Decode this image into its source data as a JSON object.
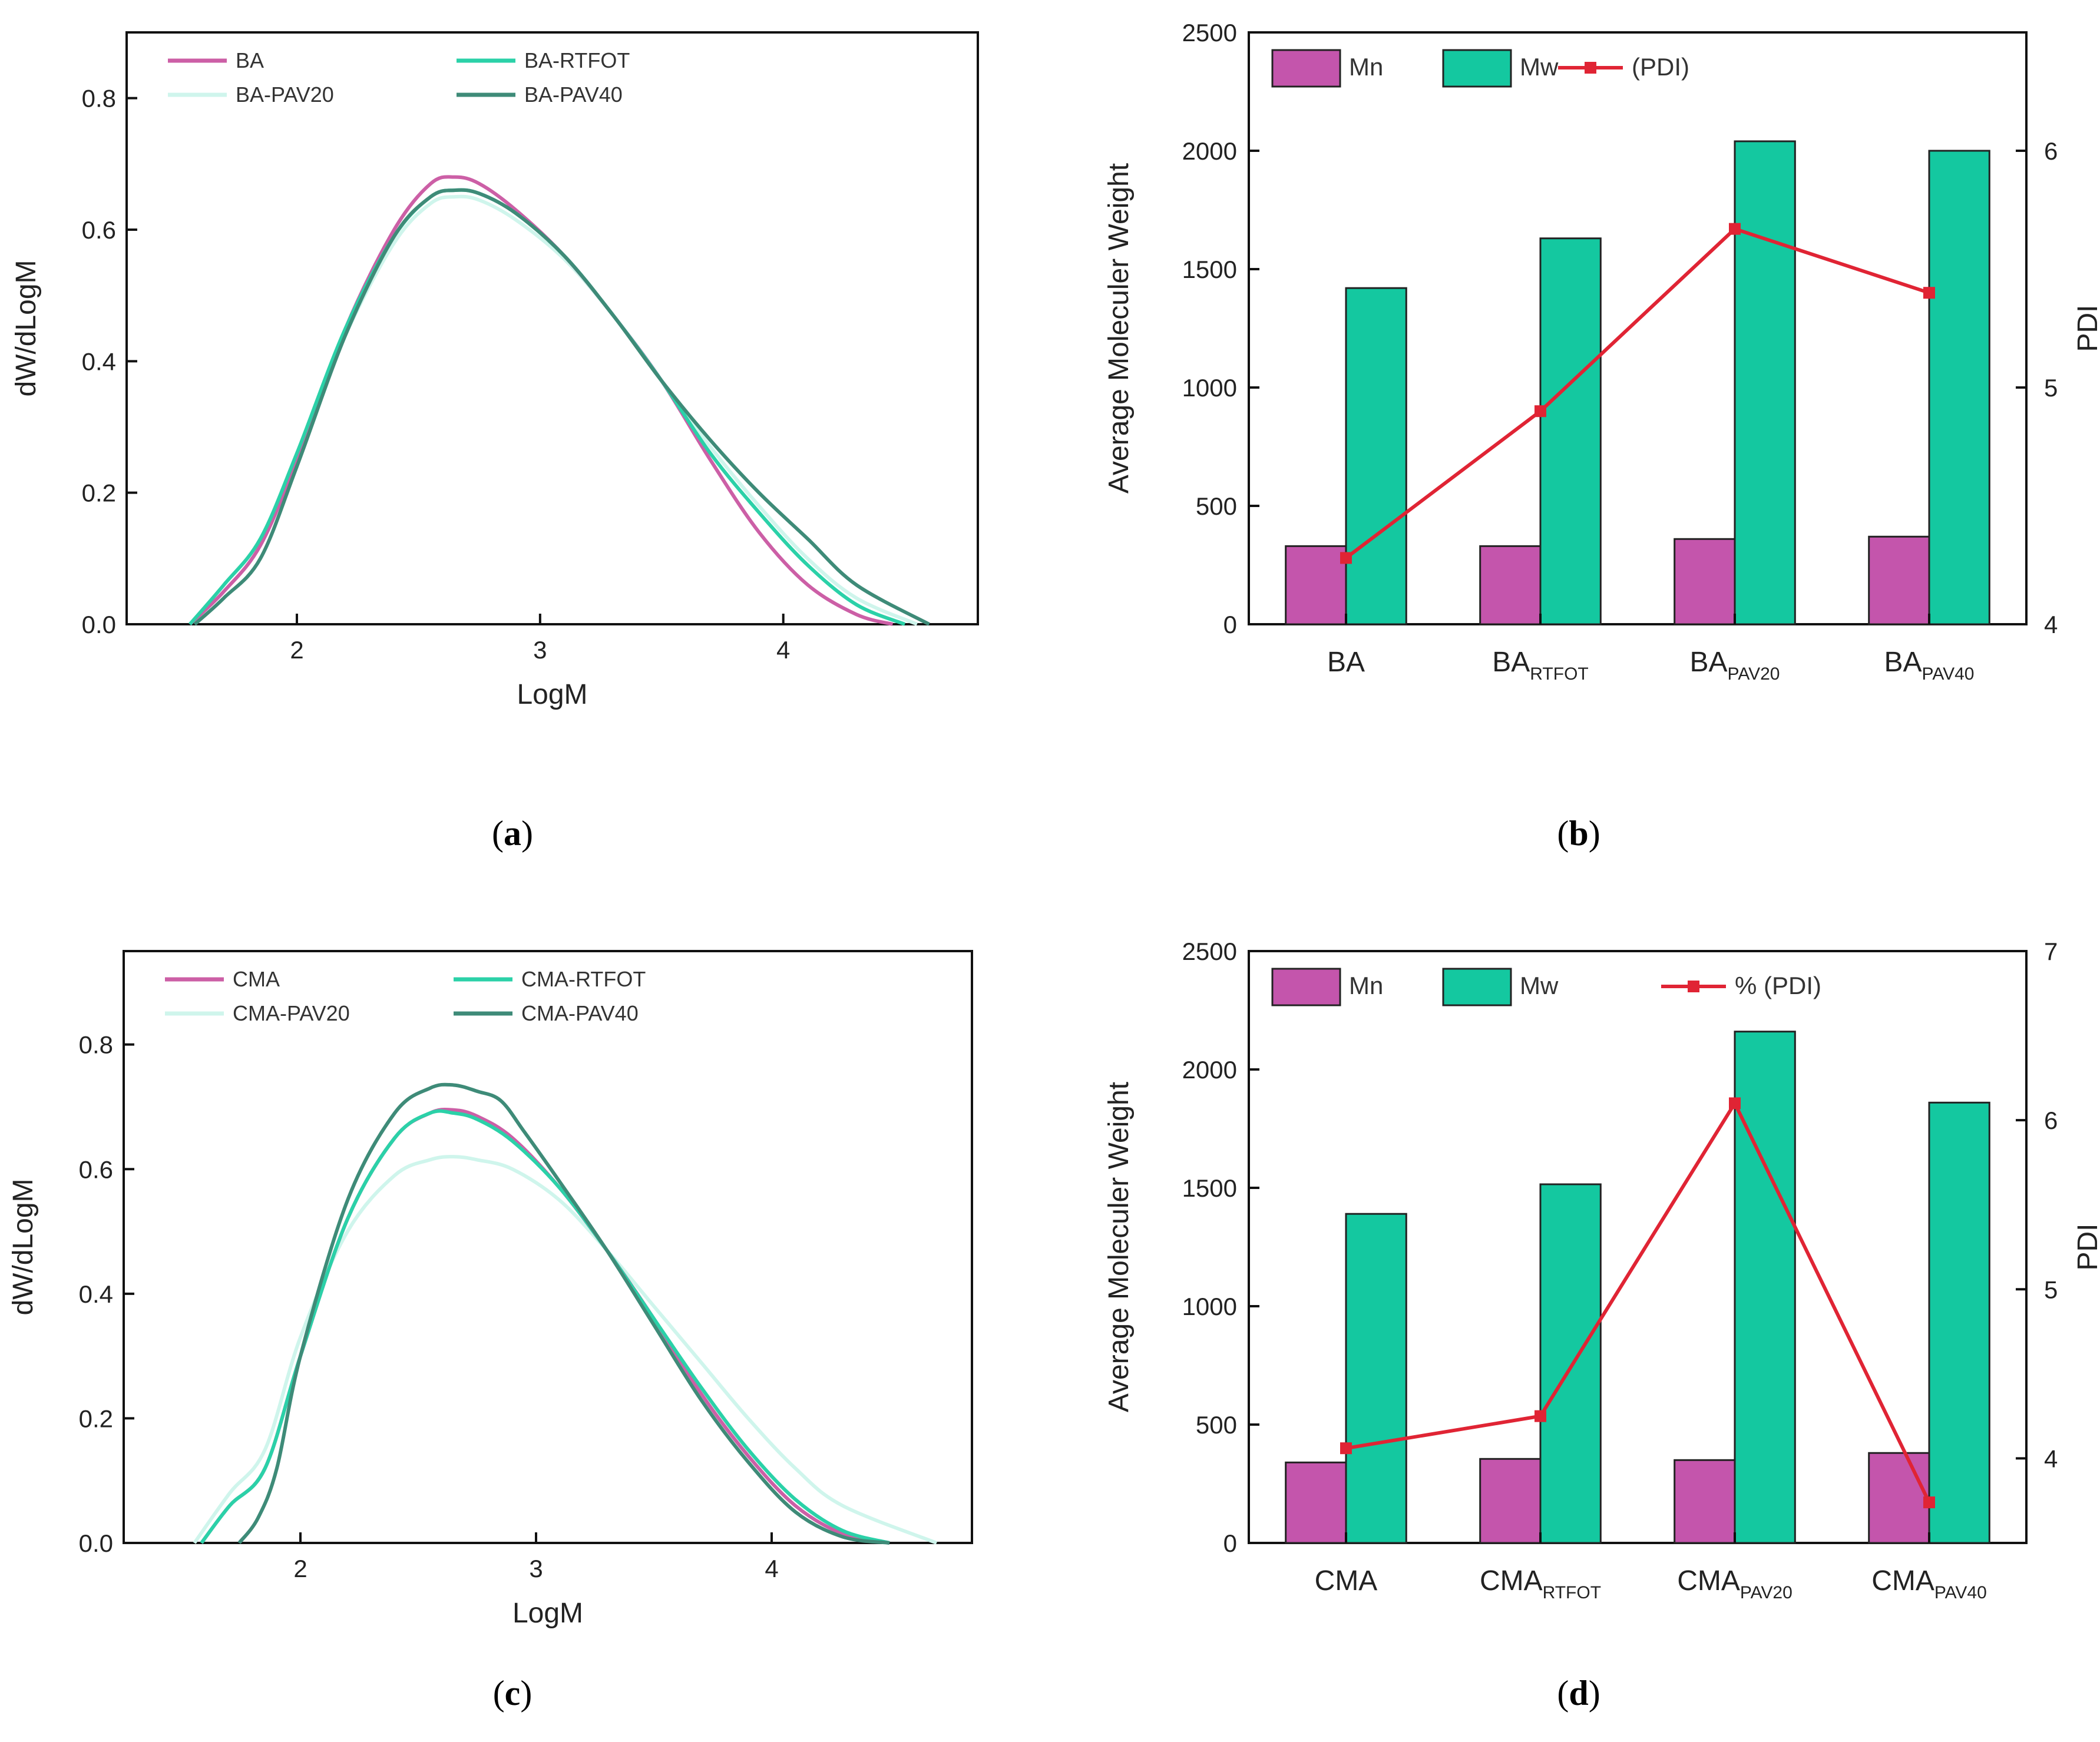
{
  "chart_data": [
    {
      "panel": "a",
      "type": "line",
      "caption_letter": "a",
      "xlabel": "LogM",
      "ylabel": "dW/dLogM",
      "xlim": [
        1.3,
        4.8
      ],
      "ylim": [
        0,
        0.9
      ],
      "xticks": [
        "2",
        "3",
        "4"
      ],
      "yticks": [
        "0.0",
        "0.2",
        "0.4",
        "0.6",
        "0.8"
      ],
      "legend": [
        "BA",
        "BA-RTFOT",
        "BA-PAV20",
        "BA-PAV40"
      ],
      "series": [
        {
          "name": "BA",
          "color": "#cc5fa6",
          "x": [
            1.56,
            1.7,
            1.85,
            2.0,
            2.2,
            2.4,
            2.55,
            2.65,
            2.75,
            2.9,
            3.1,
            3.3,
            3.5,
            3.7,
            3.9,
            4.1,
            4.3,
            4.45
          ],
          "y": [
            0.0,
            0.05,
            0.12,
            0.25,
            0.45,
            0.6,
            0.67,
            0.68,
            0.67,
            0.63,
            0.56,
            0.47,
            0.37,
            0.25,
            0.14,
            0.06,
            0.015,
            0.0
          ]
        },
        {
          "name": "BA-RTFOT",
          "color": "#2bd1a8",
          "x": [
            1.56,
            1.7,
            1.85,
            2.0,
            2.2,
            2.4,
            2.55,
            2.65,
            2.75,
            2.9,
            3.1,
            3.3,
            3.5,
            3.7,
            3.9,
            4.1,
            4.3,
            4.5
          ],
          "y": [
            0.0,
            0.06,
            0.13,
            0.26,
            0.45,
            0.59,
            0.65,
            0.66,
            0.655,
            0.625,
            0.56,
            0.47,
            0.37,
            0.26,
            0.17,
            0.09,
            0.03,
            0.0
          ]
        },
        {
          "name": "BA-PAV20",
          "color": "#cff5ec",
          "x": [
            1.56,
            1.7,
            1.85,
            2.0,
            2.2,
            2.4,
            2.55,
            2.65,
            2.75,
            2.9,
            3.1,
            3.3,
            3.5,
            3.7,
            3.9,
            4.1,
            4.3,
            4.55
          ],
          "y": [
            0.0,
            0.06,
            0.13,
            0.26,
            0.44,
            0.58,
            0.64,
            0.65,
            0.645,
            0.615,
            0.555,
            0.47,
            0.37,
            0.27,
            0.18,
            0.1,
            0.04,
            0.0
          ]
        },
        {
          "name": "BA-PAV40",
          "color": "#3e8b78",
          "x": [
            1.58,
            1.7,
            1.85,
            2.0,
            2.2,
            2.4,
            2.55,
            2.65,
            2.75,
            2.9,
            3.1,
            3.3,
            3.5,
            3.7,
            3.9,
            4.1,
            4.3,
            4.6
          ],
          "y": [
            0.0,
            0.04,
            0.1,
            0.24,
            0.44,
            0.59,
            0.65,
            0.66,
            0.655,
            0.625,
            0.56,
            0.47,
            0.37,
            0.28,
            0.2,
            0.13,
            0.06,
            0.0
          ]
        }
      ]
    },
    {
      "panel": "b",
      "type": "bar",
      "caption_letter": "b",
      "ylabel": "Average Moleculer  Weight",
      "y2label": "PDI",
      "ylim": [
        0,
        2500
      ],
      "y2lim": [
        4,
        6.5
      ],
      "yticks": [
        "0",
        "500",
        "1000",
        "1500",
        "2000",
        "2500"
      ],
      "y2ticks": [
        "4",
        "5",
        "6"
      ],
      "categories": [
        {
          "base": "BA",
          "sub": ""
        },
        {
          "base": "BA",
          "sub": "RTFOT"
        },
        {
          "base": "BA",
          "sub": "PAV20"
        },
        {
          "base": "BA",
          "sub": "PAV40"
        }
      ],
      "series": [
        {
          "name": "Mn",
          "color": "#c455ac",
          "values": [
            330,
            330,
            360,
            370
          ]
        },
        {
          "name": "Mw",
          "color": "#14c8a0",
          "values": [
            1420,
            1630,
            2040,
            2000
          ]
        }
      ],
      "line": {
        "name": "(PDI)",
        "color": "#e02434",
        "values": [
          4.28,
          4.9,
          5.67,
          5.4
        ]
      }
    },
    {
      "panel": "c",
      "type": "line",
      "caption_letter": "c",
      "xlabel": "LogM",
      "ylabel": "dW/dLogM",
      "xlim": [
        1.25,
        4.85
      ],
      "ylim": [
        0,
        0.95
      ],
      "xticks": [
        "2",
        "3",
        "4"
      ],
      "yticks": [
        "0.0",
        "0.2",
        "0.4",
        "0.6",
        "0.8"
      ],
      "legend": [
        "CMA",
        "CMA-RTFOT",
        "CMA-PAV20",
        "CMA-PAV40"
      ],
      "series": [
        {
          "name": "CMA",
          "color": "#cc5fa6",
          "x": [
            1.58,
            1.7,
            1.85,
            2.0,
            2.2,
            2.4,
            2.55,
            2.65,
            2.75,
            2.9,
            3.1,
            3.3,
            3.5,
            3.7,
            3.9,
            4.1,
            4.3,
            4.5
          ],
          "y": [
            0.0,
            0.06,
            0.12,
            0.3,
            0.52,
            0.65,
            0.69,
            0.695,
            0.685,
            0.65,
            0.57,
            0.47,
            0.36,
            0.24,
            0.14,
            0.06,
            0.015,
            0.0
          ]
        },
        {
          "name": "CMA-RTFOT",
          "color": "#2bd1a8",
          "x": [
            1.58,
            1.7,
            1.85,
            2.0,
            2.2,
            2.4,
            2.55,
            2.65,
            2.75,
            2.9,
            3.1,
            3.3,
            3.5,
            3.7,
            3.9,
            4.1,
            4.3,
            4.5
          ],
          "y": [
            0.0,
            0.06,
            0.12,
            0.3,
            0.52,
            0.65,
            0.69,
            0.69,
            0.68,
            0.645,
            0.57,
            0.47,
            0.36,
            0.25,
            0.15,
            0.07,
            0.02,
            0.0
          ]
        },
        {
          "name": "CMA-PAV20",
          "color": "#cff5ec",
          "x": [
            1.55,
            1.7,
            1.85,
            2.0,
            2.2,
            2.4,
            2.55,
            2.65,
            2.75,
            2.9,
            3.1,
            3.3,
            3.5,
            3.7,
            3.9,
            4.1,
            4.3,
            4.7
          ],
          "y": [
            0.0,
            0.08,
            0.15,
            0.33,
            0.5,
            0.59,
            0.615,
            0.62,
            0.615,
            0.6,
            0.55,
            0.47,
            0.38,
            0.29,
            0.2,
            0.12,
            0.06,
            0.0
          ]
        },
        {
          "name": "CMA-PAV40",
          "color": "#3e8b78",
          "x": [
            1.74,
            1.82,
            1.9,
            2.0,
            2.2,
            2.4,
            2.55,
            2.65,
            2.75,
            2.85,
            2.95,
            3.1,
            3.3,
            3.5,
            3.7,
            3.9,
            4.1,
            4.3,
            4.5
          ],
          "y": [
            0.0,
            0.04,
            0.12,
            0.3,
            0.55,
            0.69,
            0.73,
            0.735,
            0.725,
            0.71,
            0.66,
            0.58,
            0.47,
            0.35,
            0.23,
            0.13,
            0.05,
            0.01,
            0.0
          ]
        }
      ]
    },
    {
      "panel": "d",
      "type": "bar",
      "caption_letter": "d",
      "ylabel": "Average Moleculer  Weight",
      "y2label": "PDI",
      "ylim": [
        0,
        2500
      ],
      "y2lim": [
        3.5,
        7
      ],
      "yticks": [
        "0",
        "500",
        "1000",
        "1500",
        "2000",
        "2500"
      ],
      "y2ticks": [
        "4",
        "5",
        "6",
        "7"
      ],
      "categories": [
        {
          "base": "CMA",
          "sub": ""
        },
        {
          "base": "CMA",
          "sub": "RTFOT"
        },
        {
          "base": "CMA",
          "sub": "PAV20"
        },
        {
          "base": "CMA",
          "sub": "PAV40"
        }
      ],
      "series": [
        {
          "name": "Mn",
          "color": "#c455ac",
          "values": [
            340,
            355,
            350,
            380
          ]
        },
        {
          "name": "Mw",
          "color": "#14c8a0",
          "values": [
            1390,
            1515,
            2160,
            1860
          ]
        }
      ],
      "line": {
        "name": "% (PDI)",
        "color": "#e02434",
        "values": [
          4.06,
          4.25,
          6.1,
          3.74
        ]
      }
    }
  ]
}
